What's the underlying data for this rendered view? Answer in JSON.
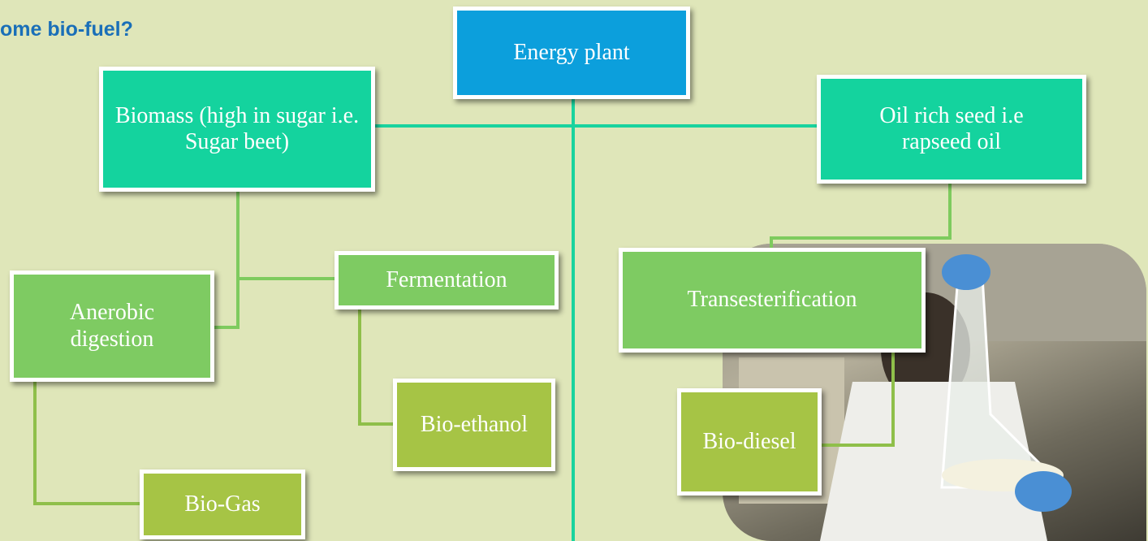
{
  "header": {
    "title": "ome bio-fuel?"
  },
  "nodes": [
    {
      "label": "Energy plant"
    },
    {
      "label": "Biomass (high in sugar i.e. Sugar beet)"
    },
    {
      "label": "Oil rich seed i.e rapseed oil"
    },
    {
      "label": "Fermentation"
    },
    {
      "label": "Anerobic digestion"
    },
    {
      "label": "Transesterification"
    },
    {
      "label": "Bio-ethanol"
    },
    {
      "label": "Bio-diesel"
    },
    {
      "label": "Bio-Gas"
    }
  ]
}
